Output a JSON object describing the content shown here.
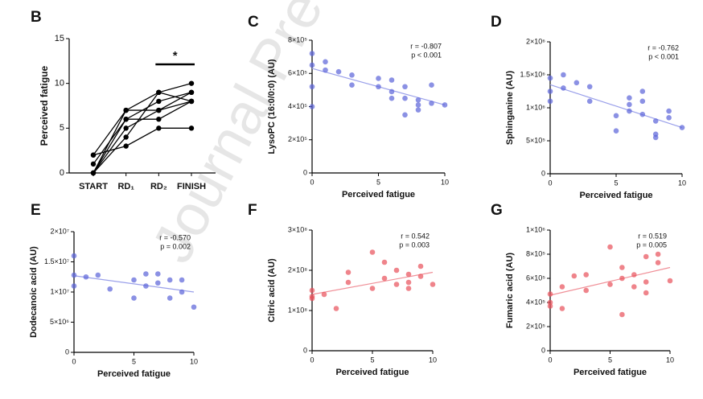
{
  "watermark": "Journal Pre",
  "chart_data": [
    {
      "panel": "B",
      "type": "line",
      "y_label": "Perceived fatigue",
      "categories": [
        "START",
        "RD₁",
        "RD₂",
        "FINISH"
      ],
      "color": "#000000",
      "series": [
        {
          "values": [
            2,
            7,
            9,
            10
          ]
        },
        {
          "values": [
            1,
            6,
            8,
            9
          ]
        },
        {
          "values": [
            0,
            5,
            7,
            8
          ]
        },
        {
          "values": [
            0,
            6,
            6,
            8
          ]
        },
        {
          "values": [
            2,
            3,
            5,
            5
          ]
        },
        {
          "values": [
            0,
            4,
            9,
            8
          ]
        },
        {
          "values": [
            0,
            7,
            7,
            9
          ]
        }
      ],
      "ylim": [
        0,
        15
      ],
      "yticks": [
        0,
        5,
        10,
        15
      ],
      "annotation": "*"
    },
    {
      "panel": "C",
      "type": "scatter",
      "x_label": "Perceived fatigue",
      "y_label": "LysoPC (16:0/0:0) (AU)",
      "color": "#5a63d9",
      "trend_color": "#9aa0ea",
      "x": [
        0,
        0,
        0,
        0,
        1,
        1,
        2,
        3,
        3,
        5,
        5,
        6,
        6,
        6,
        7,
        7,
        7,
        8,
        8,
        8,
        9,
        9,
        10
      ],
      "values": [
        720000,
        650000,
        520000,
        400000,
        670000,
        620000,
        610000,
        590000,
        530000,
        570000,
        520000,
        560000,
        490000,
        450000,
        520000,
        350000,
        450000,
        440000,
        410000,
        380000,
        530000,
        420000,
        410000
      ],
      "trend": {
        "x": [
          0,
          10
        ],
        "values": [
          630000,
          410000
        ]
      },
      "xlim": [
        0,
        10
      ],
      "xticks": [
        0,
        5,
        10
      ],
      "ylim": [
        0,
        800000
      ],
      "yticks": [
        0,
        {
          "value": 200000,
          "label": "2×10⁵"
        },
        {
          "value": 400000,
          "label": "4×10⁵"
        },
        {
          "value": 600000,
          "label": "6×10⁵"
        },
        {
          "value": 800000,
          "label": "8×10⁵"
        }
      ],
      "annotation": [
        "r = -0.807",
        "p < 0.001"
      ]
    },
    {
      "panel": "D",
      "type": "scatter",
      "x_label": "Perceived fatigue",
      "y_label": "Sphinganine (AU)",
      "color": "#5a63d9",
      "trend_color": "#9aa0ea",
      "x": [
        0,
        0,
        0,
        1,
        1,
        2,
        3,
        3,
        5,
        5,
        6,
        6,
        6,
        7,
        7,
        7,
        8,
        8,
        8,
        9,
        9,
        10
      ],
      "values": [
        1450000,
        1250000,
        1100000,
        1500000,
        1300000,
        1380000,
        1320000,
        1100000,
        880000,
        650000,
        1150000,
        1050000,
        950000,
        1250000,
        1100000,
        900000,
        800000,
        600000,
        550000,
        950000,
        850000,
        700000
      ],
      "trend": {
        "x": [
          0,
          10
        ],
        "values": [
          1350000,
          700000
        ]
      },
      "xlim": [
        0,
        10
      ],
      "xticks": [
        0,
        5,
        10
      ],
      "ylim": [
        0,
        2000000
      ],
      "yticks": [
        0,
        {
          "value": 500000,
          "label": "5×10⁵"
        },
        {
          "value": 1000000,
          "label": "1×10⁶"
        },
        {
          "value": 1500000,
          "label": "1.5×10⁶"
        },
        {
          "value": 2000000,
          "label": "2×10⁶"
        }
      ],
      "annotation": [
        "r = -0.762",
        "p < 0.001"
      ]
    },
    {
      "panel": "E",
      "type": "scatter",
      "x_label": "Perceived fatigue",
      "y_label": "Dodecanoic acid (AU)",
      "color": "#5a63d9",
      "trend_color": "#9aa0ea",
      "x": [
        0,
        0,
        0,
        1,
        2,
        3,
        5,
        5,
        6,
        6,
        7,
        7,
        8,
        8,
        9,
        9,
        10
      ],
      "values": [
        16000000,
        12800000,
        11000000,
        12500000,
        12800000,
        10500000,
        12000000,
        9000000,
        13000000,
        11000000,
        13000000,
        11500000,
        12000000,
        9000000,
        12000000,
        10000000,
        7500000
      ],
      "trend": {
        "x": [
          0,
          10
        ],
        "values": [
          12700000,
          10000000
        ]
      },
      "xlim": [
        0,
        10
      ],
      "xticks": [
        0,
        5,
        10
      ],
      "ylim": [
        0,
        20000000
      ],
      "yticks": [
        0,
        {
          "value": 5000000,
          "label": "5×10⁶"
        },
        {
          "value": 10000000,
          "label": "1×10⁷"
        },
        {
          "value": 15000000,
          "label": "1.5×10⁷"
        },
        {
          "value": 20000000,
          "label": "2×10⁷"
        }
      ],
      "annotation": [
        "r = -0.570",
        "p = 0.002"
      ]
    },
    {
      "panel": "F",
      "type": "scatter",
      "x_label": "Perceived fatigue",
      "y_label": "Citric acid (AU)",
      "color": "#e8505a",
      "trend_color": "#f09098",
      "x": [
        0,
        0,
        0,
        1,
        2,
        3,
        3,
        5,
        5,
        6,
        6,
        7,
        7,
        8,
        8,
        8,
        9,
        9,
        10
      ],
      "values": [
        150000000,
        135000000,
        130000000,
        140000000,
        105000000,
        195000000,
        170000000,
        245000000,
        155000000,
        220000000,
        180000000,
        200000000,
        165000000,
        190000000,
        170000000,
        155000000,
        210000000,
        185000000,
        165000000
      ],
      "trend": {
        "x": [
          0,
          10
        ],
        "values": [
          140000000,
          195000000
        ]
      },
      "xlim": [
        0,
        10
      ],
      "xticks": [
        0,
        5,
        10
      ],
      "ylim": [
        0,
        300000000
      ],
      "yticks": [
        0,
        {
          "value": 100000000,
          "label": "1×10⁸"
        },
        {
          "value": 200000000,
          "label": "2×10⁸"
        },
        {
          "value": 300000000,
          "label": "3×10⁸"
        }
      ],
      "annotation": [
        "r = 0.542",
        "p = 0.003"
      ]
    },
    {
      "panel": "G",
      "type": "scatter",
      "x_label": "Perceived fatigue",
      "y_label": "Fumaric acid (AU)",
      "color": "#e8505a",
      "trend_color": "#f09098",
      "x": [
        0,
        0,
        0,
        1,
        1,
        2,
        3,
        3,
        5,
        5,
        6,
        6,
        6,
        7,
        7,
        8,
        8,
        8,
        9,
        9,
        10
      ],
      "values": [
        470000,
        400000,
        370000,
        350000,
        530000,
        620000,
        500000,
        630000,
        860000,
        550000,
        690000,
        300000,
        600000,
        630000,
        530000,
        780000,
        570000,
        480000,
        800000,
        730000,
        580000
      ],
      "trend": {
        "x": [
          0,
          10
        ],
        "values": [
          460000,
          690000
        ]
      },
      "xlim": [
        0,
        10
      ],
      "xticks": [
        0,
        5,
        10
      ],
      "ylim": [
        0,
        1000000
      ],
      "yticks": [
        0,
        {
          "value": 200000,
          "label": "2×10⁵"
        },
        {
          "value": 400000,
          "label": "4×10⁵"
        },
        {
          "value": 600000,
          "label": "6×10⁵"
        },
        {
          "value": 800000,
          "label": "8×10⁵"
        },
        {
          "value": 1000000,
          "label": "1×10⁶"
        }
      ],
      "annotation": [
        "r = 0.519",
        "p = 0.005"
      ]
    }
  ]
}
